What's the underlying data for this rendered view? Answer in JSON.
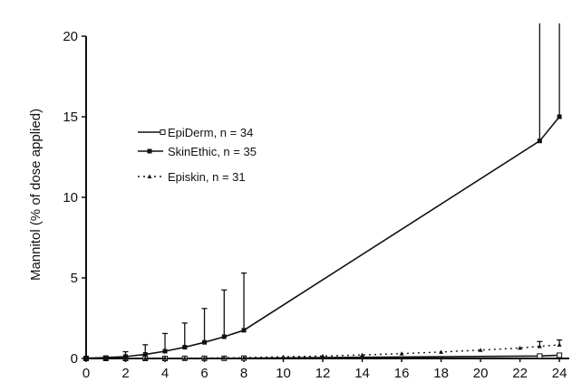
{
  "chart_data": {
    "type": "line",
    "title": "",
    "xlabel": "",
    "ylabel": "Mannitol (% of dose applied)",
    "xlim": [
      0,
      24.5
    ],
    "ylim": [
      0,
      20
    ],
    "x_ticks": [
      0,
      2,
      4,
      6,
      8,
      10,
      12,
      14,
      16,
      18,
      20,
      22,
      24
    ],
    "y_ticks": [
      0,
      5,
      10,
      15,
      20
    ],
    "grid": false,
    "legend_position": "top-left",
    "series": [
      {
        "name": "EpiDerm, n = 34",
        "style": "solid-open-square",
        "x": [
          0,
          1,
          2,
          3,
          4,
          5,
          6,
          7,
          8,
          23,
          24
        ],
        "y": [
          0.0,
          0.0,
          0.0,
          0.0,
          0.0,
          0.01,
          0.01,
          0.01,
          0.02,
          0.15,
          0.2
        ],
        "error": [
          0,
          0,
          0,
          0,
          0,
          0,
          0,
          0,
          0,
          0.05,
          0.1
        ]
      },
      {
        "name": "SkinEthic, n = 35",
        "style": "solid-filled-square",
        "x": [
          0,
          1,
          2,
          3,
          4,
          5,
          6,
          7,
          8,
          23,
          24
        ],
        "y": [
          0.02,
          0.05,
          0.12,
          0.25,
          0.45,
          0.7,
          1.0,
          1.35,
          1.75,
          13.5,
          15.0
        ],
        "error": [
          0.02,
          0.1,
          0.3,
          0.6,
          1.1,
          1.5,
          2.1,
          2.9,
          3.55,
          7.5,
          6.0
        ]
      },
      {
        "name": "Episkin, n = 31",
        "style": "dotted-triangle",
        "x": [
          0,
          1,
          2,
          3,
          4,
          5,
          6,
          7,
          8,
          10,
          12,
          14,
          16,
          18,
          20,
          22,
          23,
          24
        ],
        "y": [
          0.0,
          0.0,
          0.01,
          0.01,
          0.02,
          0.02,
          0.03,
          0.04,
          0.05,
          0.1,
          0.15,
          0.22,
          0.3,
          0.4,
          0.52,
          0.65,
          0.75,
          0.85
        ],
        "error": [
          0,
          0,
          0,
          0,
          0,
          0,
          0,
          0,
          0,
          0,
          0,
          0,
          0,
          0,
          0,
          0,
          0.3,
          0.3
        ]
      }
    ]
  }
}
